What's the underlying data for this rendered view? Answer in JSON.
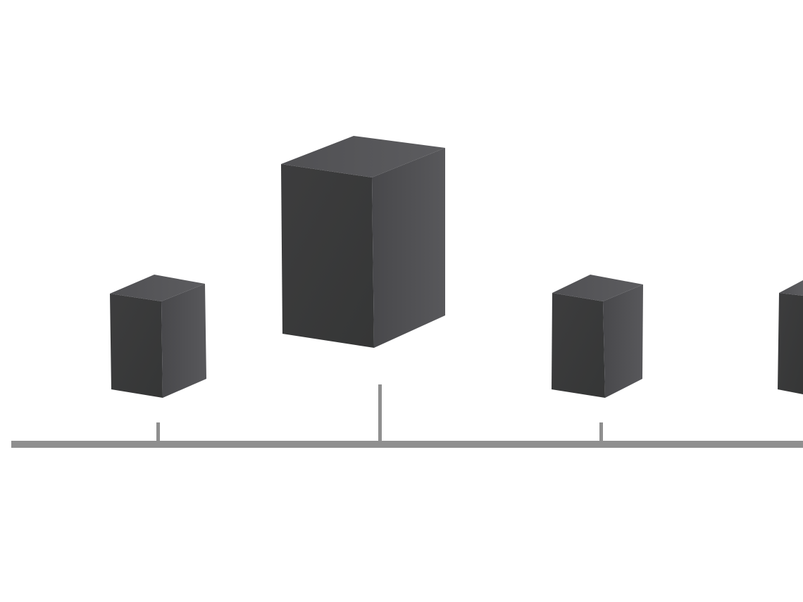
{
  "scene": {
    "kind": "timeline-with-blocks",
    "block_count": 4,
    "tick_count": 3,
    "colors": {
      "background": "#ffffff",
      "baseline": "#8f8f8f",
      "tick": "#8f8f8f",
      "block_front": "#3a3a3b",
      "block_side": "#505053",
      "block_top": "#59595c"
    },
    "icons": [
      "box-block-icon",
      "timeline-tick-icon"
    ]
  }
}
